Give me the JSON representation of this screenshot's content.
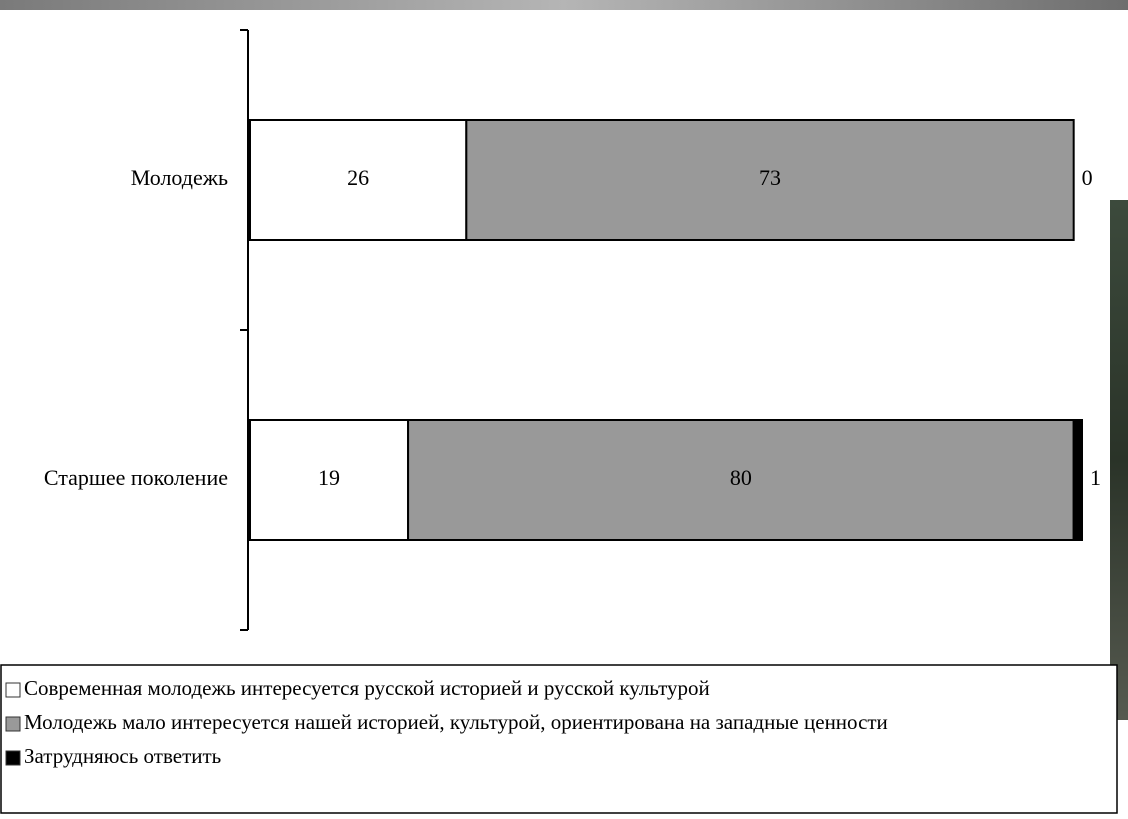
{
  "chart_data": {
    "type": "stacked-bar-horizontal",
    "categories": [
      "Молодежь",
      "Старшее поколение"
    ],
    "series": [
      {
        "name": "Современная молодежь интересуется русской историей и русской культурой",
        "color": "#ffffff",
        "values": [
          26,
          19
        ]
      },
      {
        "name": "Молодежь мало интересуется нашей историей,  культурой, ориентирована на западные ценности",
        "color": "#999999",
        "values": [
          73,
          80
        ]
      },
      {
        "name": "Затрудняюсь ответить",
        "color": "#000000",
        "values": [
          0,
          1
        ]
      }
    ]
  }
}
